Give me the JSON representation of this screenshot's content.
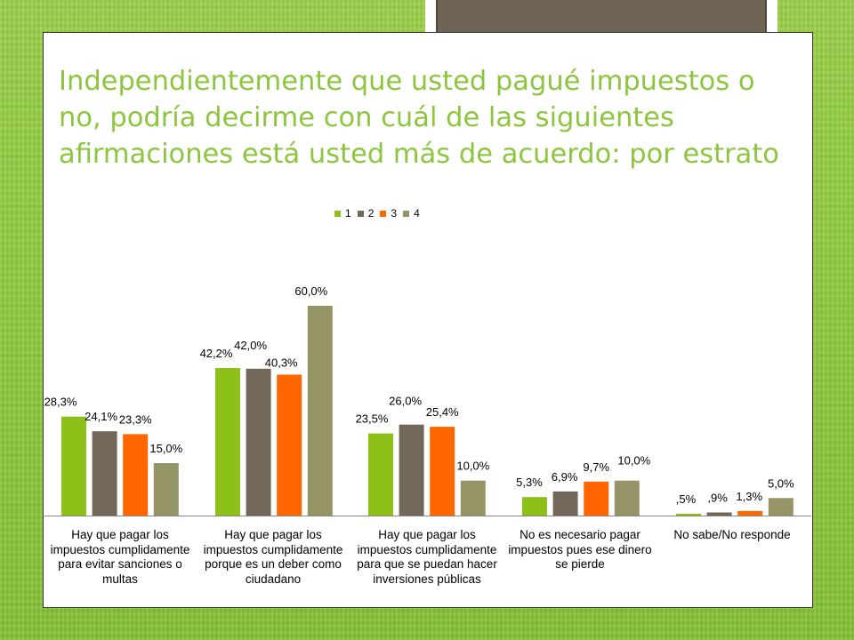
{
  "slide": {
    "title": "Independientemente que usted pagué impuestos o no, podría decirme con cuál de las siguientes afirmaciones está usted más de acuerdo: por estrato"
  },
  "colors": {
    "background": "#8cc63f",
    "title": "#8cc63f",
    "plaque": "#6e6454"
  },
  "chart_data": {
    "type": "bar",
    "categories": [
      "Hay que pagar los impuestos cumplidamente para evitar sanciones o multas",
      "Hay que pagar los impuestos cumplidamente porque es un deber como ciudadano",
      "Hay que pagar los impuestos cumplidamente para que se puedan hacer inversiones públicas",
      "No es necesario pagar impuestos pues ese dinero se pierde",
      "No sabe/No responde"
    ],
    "series": [
      {
        "name": "1",
        "color": "#8dc11a",
        "values": [
          28.3,
          42.2,
          23.5,
          5.3,
          0.5
        ],
        "labels": [
          "28,3%",
          "42,2%",
          "23,5%",
          "5,3%",
          ",5%"
        ]
      },
      {
        "name": "2",
        "color": "#71685a",
        "values": [
          24.1,
          42.0,
          26.0,
          6.9,
          0.9
        ],
        "labels": [
          "24,1%",
          "42,0%",
          "26,0%",
          "6,9%",
          ",9%"
        ]
      },
      {
        "name": "3",
        "color": "#ff6600",
        "values": [
          23.3,
          40.3,
          25.4,
          9.7,
          1.3
        ],
        "labels": [
          "23,3%",
          "40,3%",
          "25,4%",
          "9,7%",
          "1,3%"
        ]
      },
      {
        "name": "4",
        "color": "#959467",
        "values": [
          15.0,
          60.0,
          10.0,
          10.0,
          5.0
        ],
        "labels": [
          "15,0%",
          "60,0%",
          "10,0%",
          "10,0%",
          "5,0%"
        ]
      }
    ],
    "ylim": [
      0,
      60
    ],
    "grid": false,
    "legend_position": "top-center",
    "title": "",
    "xlabel": "",
    "ylabel": ""
  }
}
